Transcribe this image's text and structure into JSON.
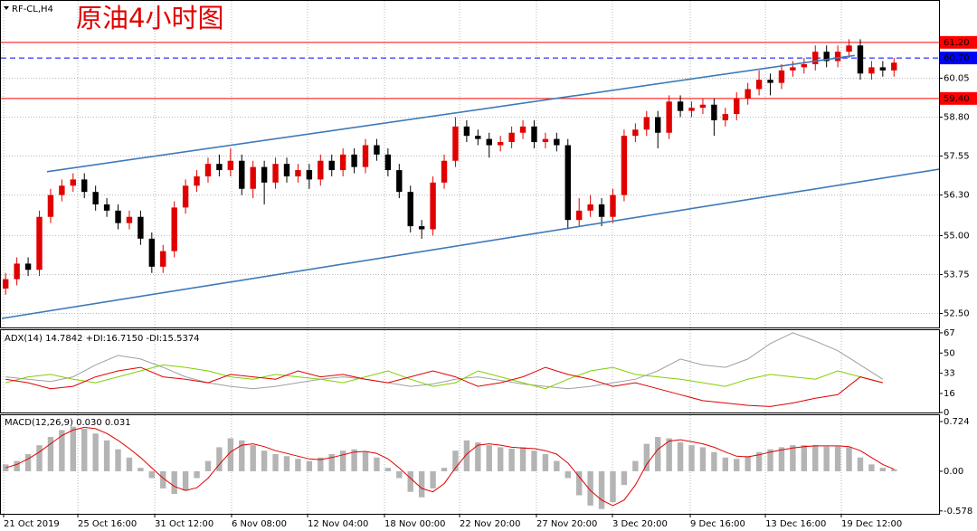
{
  "chart_data": [
    {
      "type": "candlestick",
      "symbol": "RF-CL,H4",
      "title": "原油4小时图",
      "up_color": "#e00000",
      "down_color": "#000000",
      "grid": true,
      "xlim": [
        -0.5,
        83
      ],
      "xticks": [
        {
          "value": -0.18,
          "label": "21 Oct 2019"
        },
        {
          "value": 6.42,
          "label": "25 Oct 16:00"
        },
        {
          "value": 13.26,
          "label": "31 Oct 12:00"
        },
        {
          "value": 20.09,
          "label": "6 Nov 08:00"
        },
        {
          "value": 26.85,
          "label": "12 Nov 04:00"
        },
        {
          "value": 33.69,
          "label": "18 Nov 00:00"
        },
        {
          "value": 40.37,
          "label": "22 Nov 20:00"
        },
        {
          "value": 47.2,
          "label": "27 Nov 20:00"
        },
        {
          "value": 53.96,
          "label": "3 Dec 20:00"
        },
        {
          "value": 60.88,
          "label": "9 Dec 16:00"
        },
        {
          "value": 67.56,
          "label": "13 Dec 16:00"
        },
        {
          "value": 74.31,
          "label": "19 Dec 12:00"
        }
      ],
      "ylim": [
        52.05,
        62.56
      ],
      "yticks": [
        {
          "value": 60.05,
          "label": "60.05"
        },
        {
          "value": 58.8,
          "label": "58.80"
        },
        {
          "value": 57.55,
          "label": "57.55"
        },
        {
          "value": 56.3,
          "label": "56.30"
        },
        {
          "value": 55,
          "label": "55.00"
        },
        {
          "value": 53.75,
          "label": "53.75"
        },
        {
          "value": 52.5,
          "label": "52.50"
        }
      ],
      "levels": [
        {
          "value": 61.2,
          "label": "61.20",
          "color": "#ff0000",
          "style": "solid"
        },
        {
          "value": 60.7,
          "label": "60.70",
          "color": "#0000ff",
          "style": "dashed"
        },
        {
          "value": 59.4,
          "label": "59.40",
          "color": "#ff0000",
          "style": "solid"
        }
      ],
      "trendlines": [
        {
          "x": [
            3.68,
            75.5
          ],
          "y": [
            57.05,
            60.78
          ],
          "color": "#3d7ab8"
        },
        {
          "x": [
            -0.34,
            83
          ],
          "y": [
            52.34,
            57.13
          ],
          "color": "#3d7ab8"
        }
      ],
      "open": [
        53.3,
        53.6,
        54.1,
        53.9,
        55.6,
        56.3,
        56.6,
        56.8,
        56.4,
        56.0,
        55.8,
        55.4,
        55.6,
        54.9,
        54.0,
        54.5,
        55.9,
        56.6,
        56.9,
        57.3,
        57.1,
        57.4,
        56.5,
        57.2,
        56.7,
        57.3,
        56.9,
        57.1,
        56.8,
        57.4,
        57.1,
        57.6,
        57.2,
        57.9,
        57.6,
        57.1,
        56.4,
        55.3,
        55.2,
        56.7,
        57.4,
        58.5,
        58.2,
        58.1,
        57.9,
        58.0,
        58.3,
        58.5,
        58.0,
        58.1,
        57.9,
        55.5,
        55.8,
        56.0,
        55.6,
        56.3,
        58.2,
        58.4,
        58.8,
        58.3,
        59.3,
        59.0,
        59.1,
        59.2,
        58.7,
        58.9,
        59.4,
        59.7,
        60.0,
        59.9,
        60.3,
        60.4,
        60.5,
        60.9,
        60.6,
        60.9,
        61.1,
        60.2,
        60.4,
        60.3
      ],
      "high": [
        53.8,
        54.3,
        54.3,
        55.8,
        56.5,
        56.8,
        57.0,
        57.0,
        56.6,
        56.2,
        56.0,
        55.8,
        55.8,
        55.1,
        54.7,
        56.1,
        56.8,
        57.1,
        57.5,
        57.6,
        57.8,
        57.6,
        57.4,
        57.4,
        57.5,
        57.5,
        57.3,
        57.3,
        57.6,
        57.6,
        57.8,
        57.8,
        58.1,
        58.1,
        57.8,
        57.3,
        56.6,
        55.5,
        56.9,
        57.6,
        58.8,
        58.7,
        58.4,
        58.3,
        58.2,
        58.5,
        58.7,
        58.7,
        58.3,
        58.3,
        58.1,
        56.2,
        56.3,
        56.2,
        56.5,
        58.4,
        58.6,
        59.0,
        59.0,
        59.5,
        59.5,
        59.3,
        59.4,
        59.4,
        59.1,
        59.6,
        59.9,
        60.3,
        60.2,
        60.5,
        60.6,
        60.7,
        61.1,
        61.1,
        61.1,
        61.3,
        61.3,
        60.6,
        60.6,
        60.7
      ],
      "low": [
        53.1,
        53.4,
        53.7,
        53.7,
        55.4,
        56.1,
        56.4,
        56.2,
        55.8,
        55.6,
        55.2,
        55.2,
        54.7,
        53.8,
        53.8,
        54.3,
        55.7,
        56.4,
        56.7,
        56.9,
        56.9,
        56.3,
        56.2,
        56.0,
        56.5,
        56.7,
        56.7,
        56.5,
        56.6,
        56.9,
        56.9,
        57.0,
        57.0,
        57.4,
        56.9,
        56.2,
        55.1,
        54.9,
        55.0,
        56.5,
        57.2,
        58.0,
        57.9,
        57.5,
        57.7,
        57.8,
        58.1,
        57.8,
        57.8,
        57.7,
        55.2,
        55.3,
        55.6,
        55.3,
        55.4,
        56.1,
        58.0,
        58.2,
        57.8,
        58.1,
        58.8,
        58.8,
        58.9,
        58.2,
        58.5,
        58.7,
        59.2,
        59.5,
        59.5,
        59.7,
        60.1,
        60.2,
        60.3,
        60.4,
        60.4,
        60.7,
        60.0,
        60.0,
        60.1,
        60.1
      ],
      "close": [
        53.6,
        54.1,
        53.9,
        55.6,
        56.3,
        56.6,
        56.8,
        56.4,
        56.0,
        55.8,
        55.4,
        55.6,
        54.9,
        54.0,
        54.5,
        55.9,
        56.6,
        56.9,
        57.3,
        57.1,
        57.4,
        56.5,
        57.2,
        56.7,
        57.3,
        56.9,
        57.1,
        56.8,
        57.4,
        57.1,
        57.6,
        57.2,
        57.9,
        57.6,
        57.1,
        56.4,
        55.3,
        55.2,
        56.7,
        57.4,
        58.5,
        58.2,
        58.1,
        57.9,
        58.0,
        58.3,
        58.5,
        58.0,
        58.1,
        57.9,
        55.5,
        55.8,
        56.0,
        55.6,
        56.3,
        58.2,
        58.4,
        58.8,
        58.3,
        59.3,
        59.0,
        59.1,
        59.2,
        58.7,
        58.9,
        59.4,
        59.7,
        60.0,
        59.9,
        60.3,
        60.4,
        60.5,
        60.9,
        60.6,
        60.9,
        61.1,
        60.2,
        60.4,
        60.3,
        60.55
      ]
    },
    {
      "type": "line",
      "label": "ADX(14) 14.7842 +DI:16.7150 -DI:15.5374",
      "ylim": [
        0,
        70
      ],
      "yticks": [
        0,
        16,
        33,
        50,
        67
      ],
      "x": [
        0,
        2,
        4,
        6,
        8,
        10,
        12,
        14,
        16,
        18,
        20,
        22,
        24,
        26,
        28,
        30,
        32,
        34,
        36,
        38,
        40,
        42,
        44,
        46,
        48,
        50,
        52,
        54,
        56,
        58,
        60,
        62,
        64,
        66,
        68,
        70,
        72,
        74,
        76,
        78
      ],
      "series": [
        {
          "color": "#a0a0a0",
          "values": [
            30,
            28,
            26,
            30,
            40,
            48,
            45,
            38,
            30,
            25,
            22,
            20,
            22,
            25,
            28,
            30,
            28,
            25,
            22,
            24,
            28,
            30,
            27,
            24,
            22,
            20,
            22,
            25,
            28,
            35,
            45,
            40,
            38,
            45,
            58,
            67,
            60,
            52,
            40,
            28
          ]
        },
        {
          "color": "#7fd000",
          "values": [
            25,
            30,
            32,
            28,
            25,
            30,
            35,
            40,
            38,
            35,
            30,
            28,
            32,
            30,
            28,
            25,
            30,
            35,
            28,
            22,
            25,
            35,
            30,
            25,
            20,
            28,
            35,
            38,
            32,
            30,
            28,
            25,
            22,
            28,
            32,
            30,
            28,
            35,
            30,
            25
          ]
        },
        {
          "color": "#e00000",
          "values": [
            28,
            25,
            20,
            22,
            30,
            35,
            38,
            30,
            28,
            25,
            32,
            30,
            28,
            35,
            30,
            32,
            28,
            25,
            30,
            35,
            30,
            22,
            25,
            30,
            38,
            32,
            28,
            22,
            25,
            20,
            15,
            10,
            8,
            6,
            5,
            8,
            12,
            15,
            30,
            25
          ]
        }
      ]
    },
    {
      "type": "macd",
      "label": "MACD(12,26,9) 0.030 0.031",
      "ylim": [
        -0.62,
        0.83
      ],
      "yticks": [
        0.724,
        {
          "value": 0,
          "label": "0.00"
        },
        -0.578
      ],
      "bar_color": "#b4b4b4",
      "line_color": "#e00000",
      "values": [
        0.1,
        0.15,
        0.25,
        0.38,
        0.5,
        0.6,
        0.65,
        0.62,
        0.55,
        0.45,
        0.32,
        0.2,
        0.05,
        -0.1,
        -0.25,
        -0.33,
        -0.28,
        -0.1,
        0.15,
        0.35,
        0.48,
        0.45,
        0.38,
        0.3,
        0.25,
        0.22,
        0.18,
        0.15,
        0.2,
        0.25,
        0.3,
        0.32,
        0.28,
        0.2,
        0.05,
        -0.1,
        -0.3,
        -0.38,
        -0.25,
        0.05,
        0.3,
        0.45,
        0.42,
        0.38,
        0.35,
        0.33,
        0.35,
        0.3,
        0.25,
        0.15,
        -0.1,
        -0.35,
        -0.5,
        -0.55,
        -0.45,
        -0.2,
        0.15,
        0.4,
        0.5,
        0.48,
        0.42,
        0.38,
        0.35,
        0.28,
        0.2,
        0.18,
        0.22,
        0.28,
        0.32,
        0.35,
        0.38,
        0.38,
        0.38,
        0.36,
        0.36,
        0.35,
        0.2,
        0.1,
        0.05,
        0.03
      ],
      "signal": [
        0.05,
        0.1,
        0.18,
        0.28,
        0.4,
        0.52,
        0.6,
        0.64,
        0.62,
        0.55,
        0.45,
        0.33,
        0.2,
        0.05,
        -0.1,
        -0.22,
        -0.28,
        -0.24,
        -0.1,
        0.1,
        0.28,
        0.38,
        0.4,
        0.36,
        0.3,
        0.26,
        0.22,
        0.18,
        0.17,
        0.2,
        0.24,
        0.28,
        0.29,
        0.26,
        0.18,
        0.05,
        -0.1,
        -0.25,
        -0.3,
        -0.18,
        0.05,
        0.25,
        0.38,
        0.4,
        0.38,
        0.35,
        0.34,
        0.33,
        0.3,
        0.25,
        0.12,
        -0.08,
        -0.28,
        -0.42,
        -0.5,
        -0.42,
        -0.2,
        0.1,
        0.32,
        0.44,
        0.46,
        0.43,
        0.4,
        0.35,
        0.28,
        0.22,
        0.21,
        0.24,
        0.28,
        0.31,
        0.34,
        0.36,
        0.37,
        0.37,
        0.37,
        0.36,
        0.3,
        0.2,
        0.1,
        0.03
      ]
    }
  ]
}
